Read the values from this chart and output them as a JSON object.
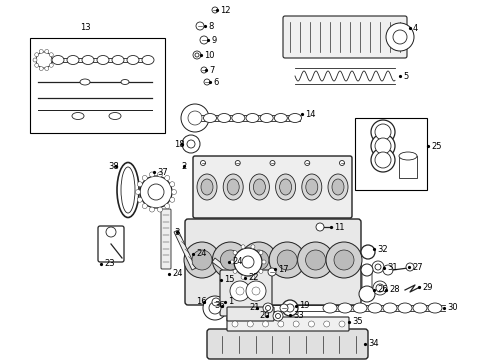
{
  "background_color": "#ffffff",
  "figure_width": 4.9,
  "figure_height": 3.6,
  "dpi": 100,
  "label_fontsize": 6.0,
  "label_color": "#000000",
  "line_color": "#222222",
  "line_width": 0.6
}
